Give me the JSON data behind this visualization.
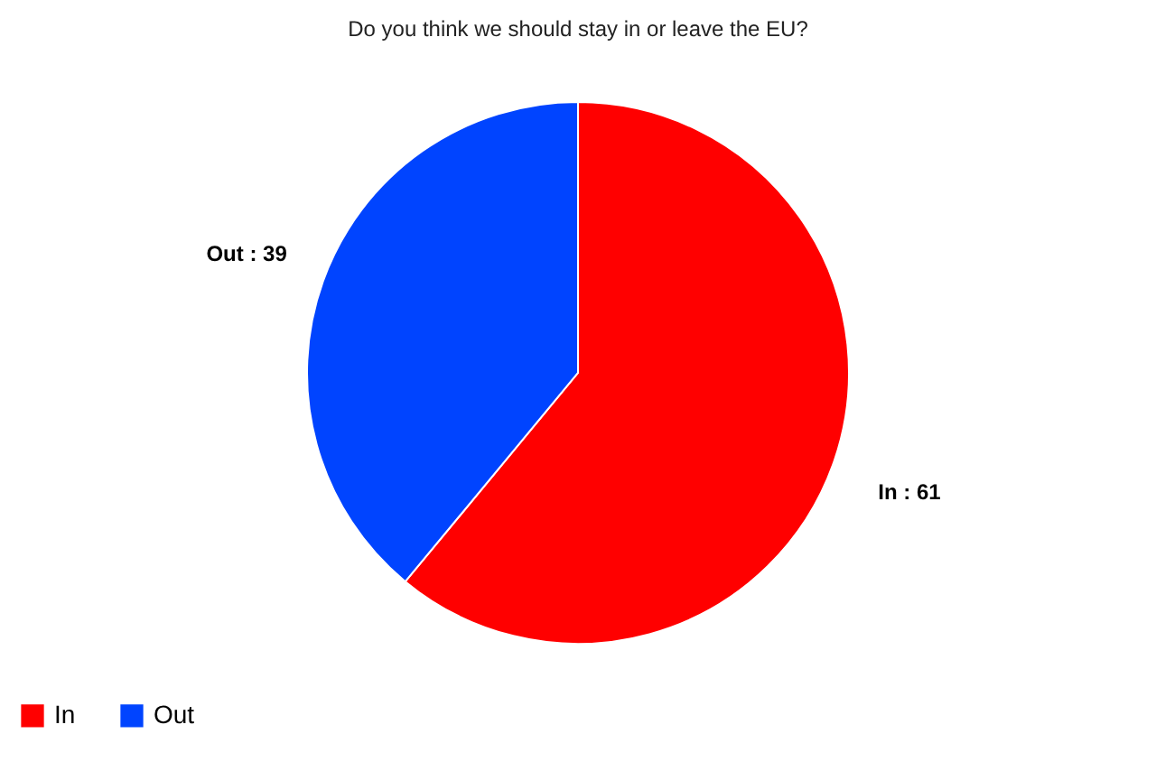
{
  "chart_data": {
    "type": "pie",
    "title": "Do you think we should stay in or leave the EU?",
    "categories": [
      "In",
      "Out"
    ],
    "values": [
      61,
      39
    ],
    "colors": [
      "#ff0000",
      "#0044ff"
    ],
    "value_labels": [
      "In : 61",
      "Out : 39"
    ],
    "legend": "bottom"
  }
}
